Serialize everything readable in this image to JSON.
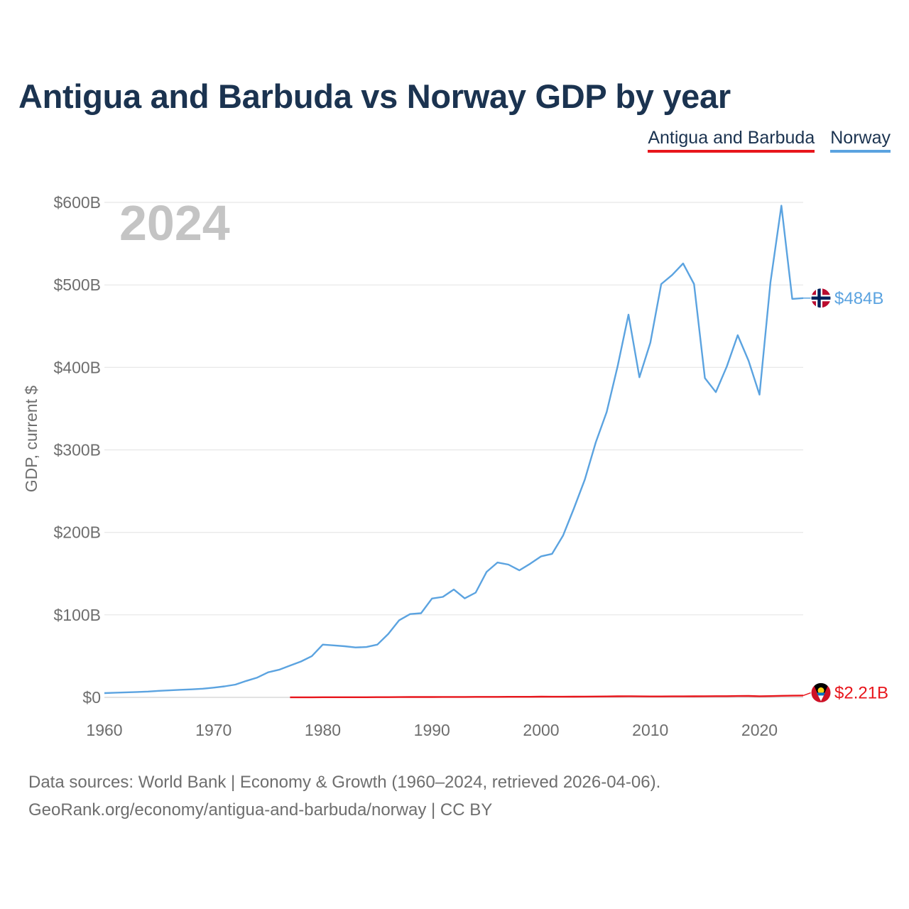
{
  "page": {
    "title": "Antigua and Barbuda vs Norway GDP by year",
    "year_watermark": "2024",
    "footer_line1": "Data sources: World Bank | Economy & Growth (1960–2024, retrieved 2026-04-06).",
    "footer_line2": "GeoRank.org/economy/antigua-and-barbuda/norway | CC BY"
  },
  "legend": {
    "items": [
      {
        "label": "Antigua and Barbuda",
        "color": "#e8161c"
      },
      {
        "label": "Norway",
        "color": "#5ba3e0"
      }
    ]
  },
  "chart_data": {
    "type": "line",
    "title": "Antigua and Barbuda vs Norway GDP by year",
    "xlabel": "",
    "ylabel": "GDP, current $",
    "xlim": [
      1960,
      2024
    ],
    "ylim": [
      0,
      600
    ],
    "unit": "billion USD",
    "x_ticks": [
      1960,
      1970,
      1980,
      1990,
      2000,
      2010,
      2020
    ],
    "x_tick_labels": [
      "1960",
      "1970",
      "1980",
      "1990",
      "2000",
      "2010",
      "2020"
    ],
    "y_ticks": [
      0,
      100,
      200,
      300,
      400,
      500,
      600
    ],
    "y_tick_labels": [
      "$0",
      "$100B",
      "$200B",
      "$300B",
      "$400B",
      "$500B",
      "$600B"
    ],
    "grid": true,
    "legend_position": "top-right",
    "series": [
      {
        "name": "Antigua and Barbuda",
        "color": "#e8161c",
        "end_label": "$2.21B",
        "flag_icon": "antigua-flag-icon",
        "x": [
          1977,
          1978,
          1979,
          1980,
          1981,
          1982,
          1983,
          1984,
          1985,
          1986,
          1987,
          1988,
          1989,
          1990,
          1991,
          1992,
          1993,
          1994,
          1995,
          1996,
          1997,
          1998,
          1999,
          2000,
          2001,
          2002,
          2003,
          2004,
          2005,
          2006,
          2007,
          2008,
          2009,
          2010,
          2011,
          2012,
          2013,
          2014,
          2015,
          2016,
          2017,
          2018,
          2019,
          2020,
          2021,
          2022,
          2023,
          2024
        ],
        "values": [
          0.08,
          0.09,
          0.11,
          0.13,
          0.15,
          0.17,
          0.18,
          0.21,
          0.25,
          0.29,
          0.34,
          0.39,
          0.44,
          0.46,
          0.48,
          0.5,
          0.53,
          0.58,
          0.58,
          0.62,
          0.66,
          0.7,
          0.73,
          0.83,
          0.8,
          0.81,
          0.85,
          0.91,
          1.0,
          1.14,
          1.3,
          1.36,
          1.21,
          1.15,
          1.14,
          1.2,
          1.18,
          1.25,
          1.34,
          1.44,
          1.47,
          1.61,
          1.69,
          1.41,
          1.56,
          1.87,
          2.03,
          2.21
        ]
      },
      {
        "name": "Norway",
        "color": "#5ba3e0",
        "end_label": "$484B",
        "flag_icon": "norway-flag-icon",
        "x": [
          1960,
          1961,
          1962,
          1963,
          1964,
          1965,
          1966,
          1967,
          1968,
          1969,
          1970,
          1971,
          1972,
          1973,
          1974,
          1975,
          1976,
          1977,
          1978,
          1979,
          1980,
          1981,
          1982,
          1983,
          1984,
          1985,
          1986,
          1987,
          1988,
          1989,
          1990,
          1991,
          1992,
          1993,
          1994,
          1995,
          1996,
          1997,
          1998,
          1999,
          2000,
          2001,
          2002,
          2003,
          2004,
          2005,
          2006,
          2007,
          2008,
          2009,
          2010,
          2011,
          2012,
          2013,
          2014,
          2015,
          2016,
          2017,
          2018,
          2019,
          2020,
          2021,
          2022,
          2023,
          2024
        ],
        "values": [
          5.2,
          5.7,
          6.1,
          6.5,
          7.1,
          7.9,
          8.5,
          9.2,
          9.7,
          10.5,
          11.8,
          13.3,
          15.5,
          20.0,
          24.0,
          30.4,
          33.5,
          38.5,
          43.5,
          50.0,
          64.0,
          63.0,
          62.0,
          60.5,
          61.0,
          64.0,
          77.0,
          93.5,
          101.0,
          102.0,
          119.8,
          121.8,
          130.8,
          120.0,
          127.0,
          152.0,
          163.5,
          161.0,
          154.0,
          162.0,
          171.0,
          174.0,
          196.0,
          229.0,
          264.0,
          309.0,
          346.0,
          401.0,
          464.0,
          388.0,
          430.0,
          501.0,
          512.0,
          526.0,
          501.0,
          387.0,
          370.0,
          401.0,
          439.0,
          408.0,
          367.0,
          503.0,
          596.0,
          483.0,
          484.0
        ]
      }
    ]
  }
}
